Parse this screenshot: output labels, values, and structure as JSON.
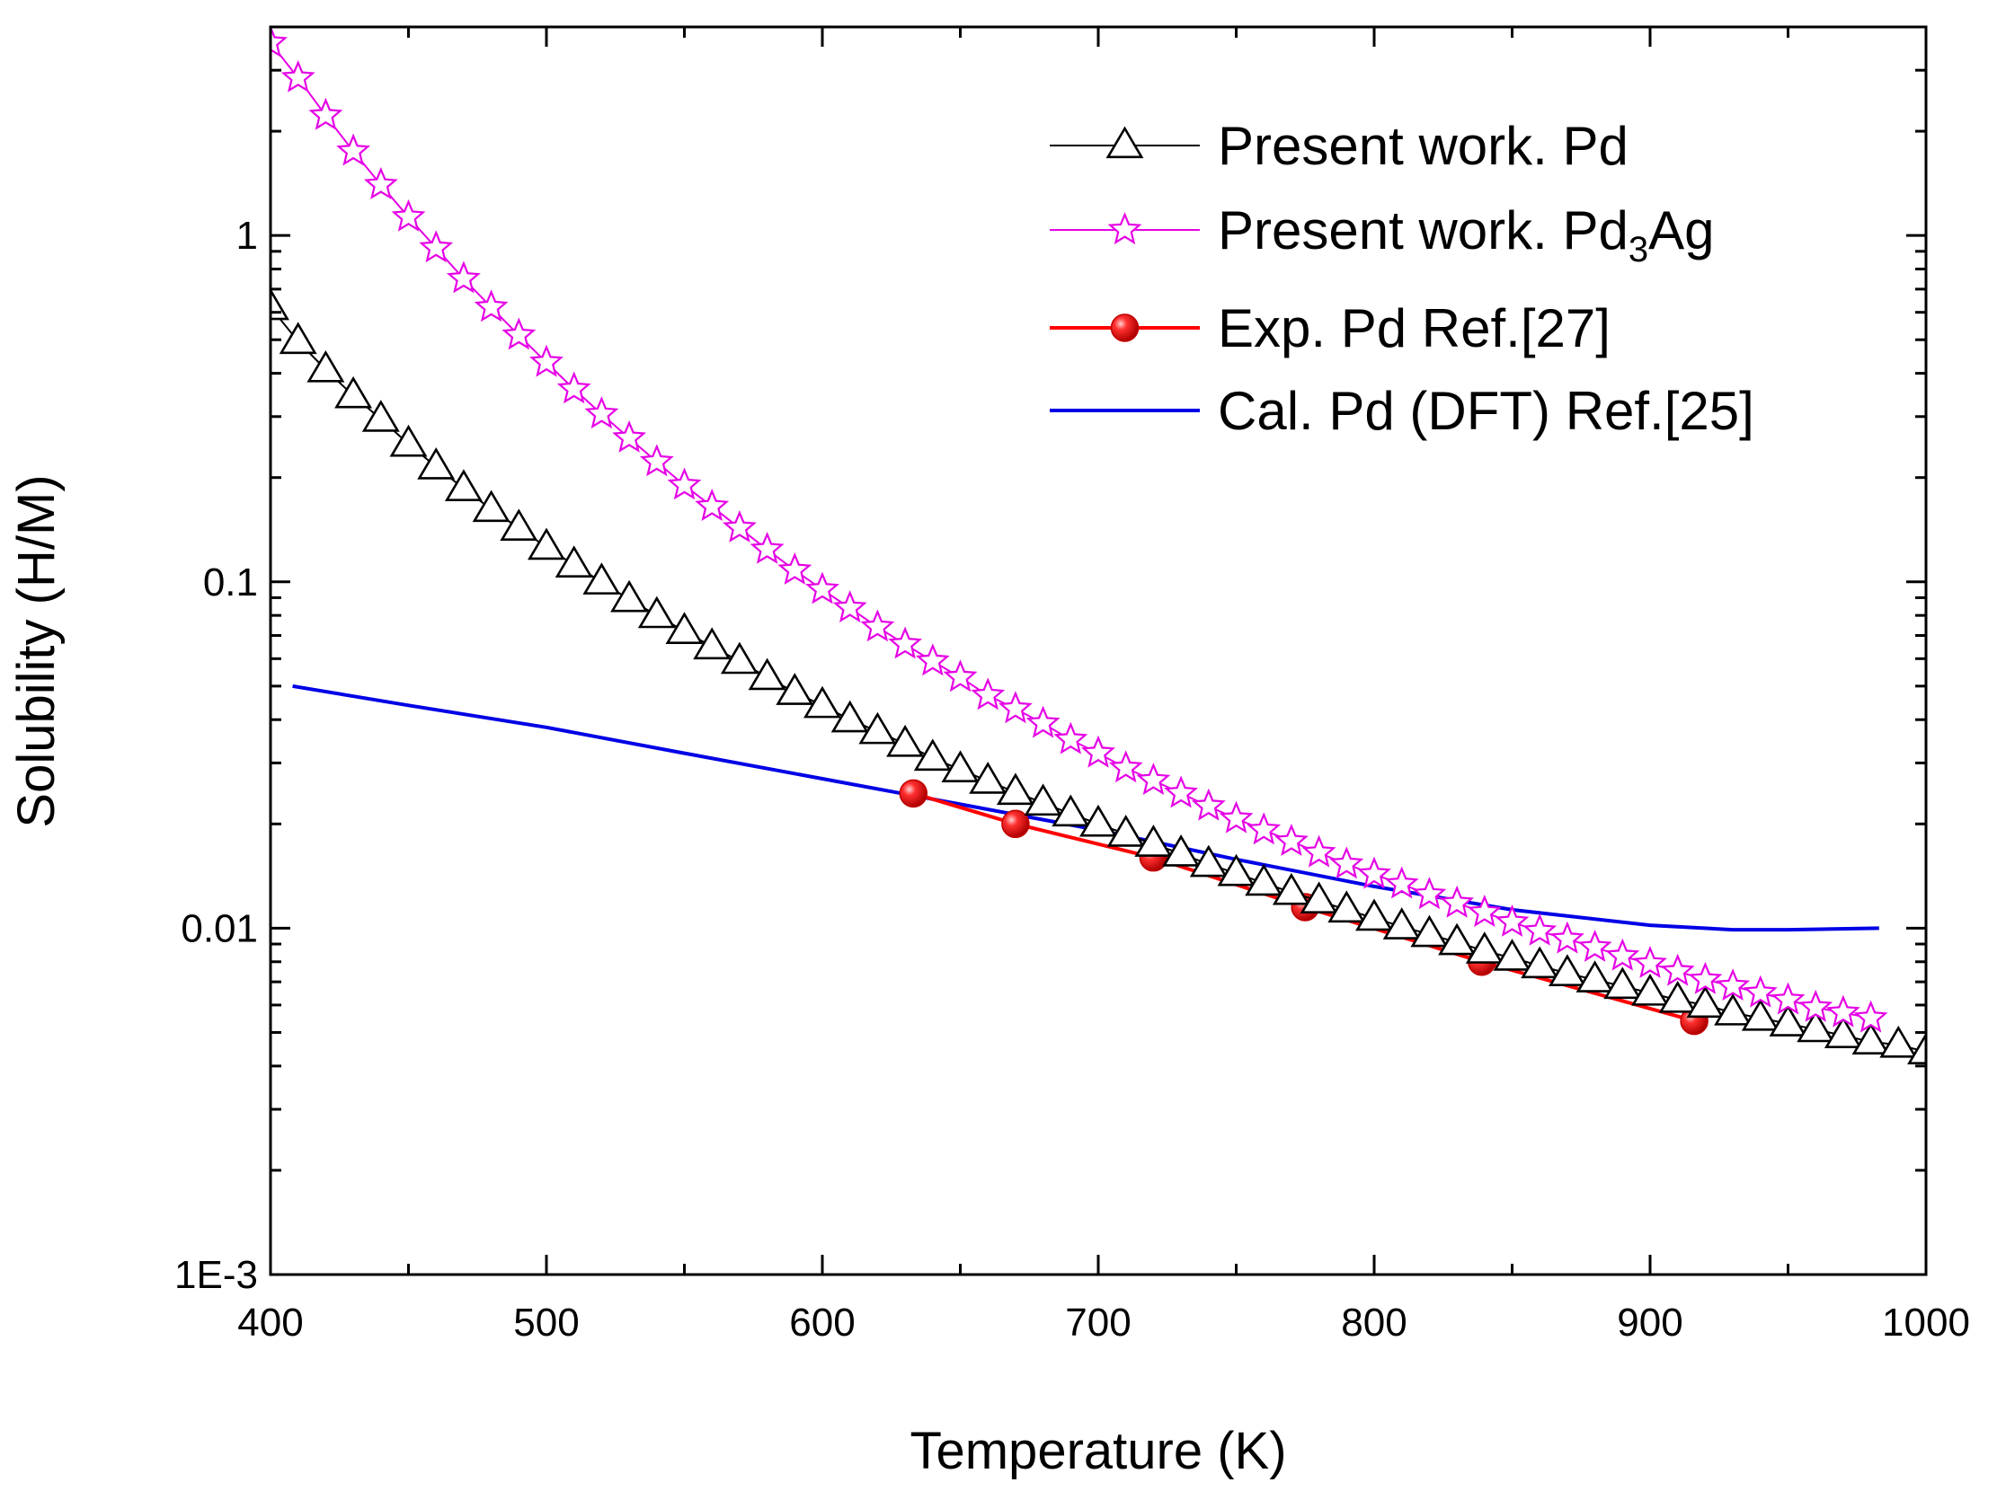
{
  "chart_data": {
    "type": "line",
    "title": "",
    "xlabel": "Temperature (K)",
    "ylabel": "Solubility (H/M)",
    "xlim": [
      400,
      1000
    ],
    "ylim": [
      0.001,
      4
    ],
    "yscale": "log",
    "grid": false,
    "legend_position": "top-right",
    "x_ticks": [
      "400",
      "500",
      "600",
      "700",
      "800",
      "900",
      "1000"
    ],
    "y_ticks": [
      {
        "value": 1,
        "label": "1"
      },
      {
        "value": 0.1,
        "label": "0.1"
      },
      {
        "value": 0.01,
        "label": "0.01"
      },
      {
        "value": 0.001,
        "label": "1E-3"
      }
    ],
    "series": [
      {
        "name": "Present work. Pd",
        "color": "#000000",
        "marker": "open-triangle",
        "x_start": 400,
        "x_step": 10,
        "values": [
          0.62,
          0.495,
          0.41,
          0.345,
          0.295,
          0.25,
          0.215,
          0.186,
          0.162,
          0.143,
          0.126,
          0.112,
          0.1,
          0.089,
          0.08,
          0.072,
          0.065,
          0.059,
          0.053,
          0.048,
          0.044,
          0.04,
          0.037,
          0.034,
          0.031,
          0.0287,
          0.0266,
          0.0247,
          0.023,
          0.0214,
          0.02,
          0.0187,
          0.0175,
          0.0164,
          0.0153,
          0.0144,
          0.0135,
          0.0127,
          0.012,
          0.0113,
          0.0107,
          0.0101,
          0.0096,
          0.0091,
          0.0086,
          0.0082,
          0.0078,
          0.0074,
          0.0071,
          0.0068,
          0.0065,
          0.0062,
          0.006,
          0.0057,
          0.0055,
          0.0053,
          0.0051,
          0.0049,
          0.0047,
          0.0046,
          0.0044
        ]
      },
      {
        "name": "Present work. Pd3Ag",
        "name_base": "Present work. Pd",
        "name_sub": "3",
        "name_tail": "Ag",
        "color": "#e600e6",
        "marker": "open-star",
        "x_start": 400,
        "x_step": 10,
        "values": [
          3.6,
          2.85,
          2.22,
          1.75,
          1.4,
          1.13,
          0.92,
          0.75,
          0.62,
          0.515,
          0.43,
          0.36,
          0.305,
          0.26,
          0.222,
          0.19,
          0.165,
          0.143,
          0.124,
          0.108,
          0.095,
          0.084,
          0.074,
          0.066,
          0.059,
          0.053,
          0.047,
          0.043,
          0.039,
          0.035,
          0.032,
          0.029,
          0.0267,
          0.0245,
          0.0225,
          0.0207,
          0.0192,
          0.0178,
          0.0165,
          0.0153,
          0.0143,
          0.0134,
          0.0125,
          0.0118,
          0.0111,
          0.0104,
          0.0098,
          0.0093,
          0.0088,
          0.0083,
          0.0079,
          0.0075,
          0.0071,
          0.0068,
          0.0065,
          0.0062,
          0.0059,
          0.0057,
          0.0055
        ]
      },
      {
        "name": "Exp. Pd Ref.[27]",
        "color": "#ff0000",
        "marker": "filled-circle",
        "x": [
          633,
          670,
          720,
          775,
          839,
          916
        ],
        "values": [
          0.0245,
          0.02,
          0.016,
          0.0115,
          0.008,
          0.0054
        ]
      },
      {
        "name": "Cal. Pd (DFT) Ref.[25]",
        "color": "#0000e6",
        "marker": "none",
        "x": [
          408,
          450,
          500,
          550,
          600,
          650,
          700,
          750,
          800,
          850,
          900,
          930,
          950,
          983
        ],
        "values": [
          0.05,
          0.044,
          0.038,
          0.032,
          0.027,
          0.0228,
          0.0192,
          0.0158,
          0.0132,
          0.0113,
          0.0102,
          0.0099,
          0.0099,
          0.01
        ]
      }
    ]
  }
}
